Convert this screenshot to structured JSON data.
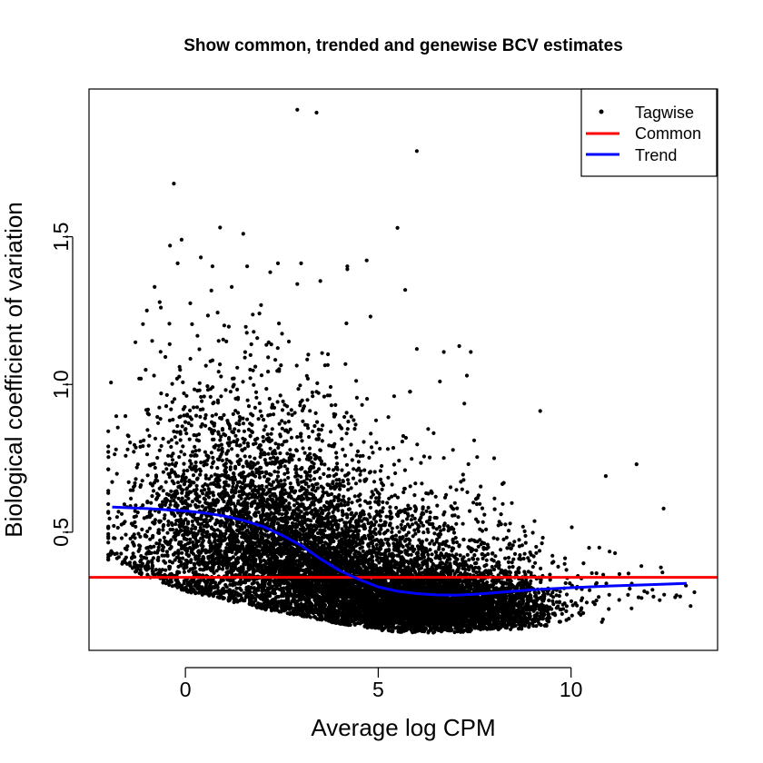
{
  "chart_data": {
    "type": "scatter",
    "title": "Show common, trended and genewise BCV estimates",
    "xlabel": "Average log CPM",
    "ylabel": "Biological coefficient of variation",
    "xlim": [
      -2.5,
      13.8
    ],
    "ylim": [
      0.1,
      2.0
    ],
    "x_ticks": [
      0,
      5,
      10
    ],
    "y_ticks": [
      0.5,
      1.0,
      1.5
    ],
    "x_tick_labels": [
      "0",
      "5",
      "10"
    ],
    "y_tick_labels": [
      "0.5",
      "1.0",
      "1.5"
    ],
    "grid": false,
    "legend_position": "top-right",
    "series": [
      {
        "name": "Tagwise",
        "kind": "points",
        "color": "#000000",
        "sample_points": [
          [
            2.9,
            1.93
          ],
          [
            3.4,
            1.92
          ],
          [
            6.0,
            1.79
          ],
          [
            -0.3,
            1.68
          ],
          [
            5.5,
            1.53
          ],
          [
            1.5,
            1.51
          ],
          [
            -0.4,
            1.47
          ],
          [
            -0.1,
            1.49
          ],
          [
            -0.2,
            1.41
          ],
          [
            0.4,
            1.43
          ],
          [
            4.7,
            1.42
          ],
          [
            4.2,
            1.4
          ],
          [
            2.4,
            1.41
          ],
          [
            3.0,
            1.41
          ],
          [
            1.6,
            1.4
          ],
          [
            4.2,
            1.39
          ],
          [
            2.2,
            1.38
          ],
          [
            3.5,
            1.35
          ],
          [
            0.7,
            1.4
          ],
          [
            2.9,
            1.34
          ],
          [
            -0.8,
            1.33
          ],
          [
            1.2,
            1.33
          ],
          [
            5.7,
            1.32
          ],
          [
            -1.0,
            1.25
          ],
          [
            4.8,
            1.23
          ],
          [
            6.0,
            1.12
          ],
          [
            6.7,
            1.11
          ],
          [
            7.4,
            1.11
          ],
          [
            7.1,
            1.13
          ],
          [
            -1.2,
            1.02
          ],
          [
            7.3,
            1.03
          ],
          [
            6.6,
            1.01
          ],
          [
            9.2,
            0.91
          ],
          [
            10.9,
            0.69
          ],
          [
            11.7,
            0.73
          ],
          [
            12.4,
            0.58
          ],
          [
            13.1,
            0.25
          ],
          [
            12.7,
            0.28
          ],
          [
            12.3,
            0.27
          ],
          [
            11.9,
            0.3
          ],
          [
            -1.9,
            0.67
          ],
          [
            -1.8,
            0.78
          ],
          [
            -1.5,
            0.78
          ],
          [
            -1.6,
            0.53
          ]
        ],
        "density": [
          {
            "cx": 0.0,
            "cy": 0.46,
            "sx": 1.0,
            "sy": 0.16,
            "n": 800
          },
          {
            "cx": 0.3,
            "cy": 0.7,
            "sx": 0.9,
            "sy": 0.18,
            "n": 260
          },
          {
            "cx": 0.3,
            "cy": 1.0,
            "sx": 0.9,
            "sy": 0.16,
            "n": 60
          },
          {
            "cx": 1.8,
            "cy": 0.45,
            "sx": 0.9,
            "sy": 0.14,
            "n": 1400
          },
          {
            "cx": 1.8,
            "cy": 0.7,
            "sx": 0.9,
            "sy": 0.16,
            "n": 340
          },
          {
            "cx": 2.0,
            "cy": 0.95,
            "sx": 0.9,
            "sy": 0.14,
            "n": 70
          },
          {
            "cx": 3.5,
            "cy": 0.35,
            "sx": 0.8,
            "sy": 0.11,
            "n": 2000
          },
          {
            "cx": 3.5,
            "cy": 0.58,
            "sx": 0.9,
            "sy": 0.14,
            "n": 420
          },
          {
            "cx": 3.5,
            "cy": 0.85,
            "sx": 0.9,
            "sy": 0.13,
            "n": 60
          },
          {
            "cx": 5.2,
            "cy": 0.27,
            "sx": 0.8,
            "sy": 0.07,
            "n": 2200
          },
          {
            "cx": 5.2,
            "cy": 0.45,
            "sx": 0.9,
            "sy": 0.11,
            "n": 420
          },
          {
            "cx": 5.2,
            "cy": 0.7,
            "sx": 0.9,
            "sy": 0.12,
            "n": 55
          },
          {
            "cx": 6.8,
            "cy": 0.25,
            "sx": 0.8,
            "sy": 0.06,
            "n": 1800
          },
          {
            "cx": 6.8,
            "cy": 0.4,
            "sx": 0.9,
            "sy": 0.09,
            "n": 320
          },
          {
            "cx": 6.9,
            "cy": 0.62,
            "sx": 0.8,
            "sy": 0.1,
            "n": 30
          },
          {
            "cx": 8.3,
            "cy": 0.24,
            "sx": 0.6,
            "sy": 0.05,
            "n": 650
          },
          {
            "cx": 8.3,
            "cy": 0.36,
            "sx": 0.7,
            "sy": 0.08,
            "n": 150
          },
          {
            "cx": 9.8,
            "cy": 0.27,
            "sx": 0.6,
            "sy": 0.05,
            "n": 60
          },
          {
            "cx": 9.8,
            "cy": 0.4,
            "sx": 0.7,
            "sy": 0.08,
            "n": 20
          },
          {
            "cx": 11.5,
            "cy": 0.3,
            "sx": 0.9,
            "sy": 0.05,
            "n": 25
          }
        ],
        "floor_curve": [
          [
            -2.0,
            0.4
          ],
          [
            0.0,
            0.3
          ],
          [
            2.0,
            0.24
          ],
          [
            4.0,
            0.19
          ],
          [
            5.5,
            0.16
          ],
          [
            7.0,
            0.16
          ],
          [
            8.5,
            0.17
          ],
          [
            10.0,
            0.19
          ],
          [
            13.5,
            0.21
          ]
        ]
      },
      {
        "name": "Common",
        "kind": "hline",
        "color": "#ff0000",
        "y": 0.347
      },
      {
        "name": "Trend",
        "kind": "line",
        "color": "#0000ff",
        "x": [
          -1.9,
          -1.0,
          0.0,
          0.5,
          1.0,
          1.5,
          2.0,
          2.5,
          3.0,
          3.5,
          4.0,
          4.5,
          5.0,
          5.5,
          6.0,
          6.5,
          7.0,
          7.5,
          8.0,
          9.0,
          10.0,
          11.0,
          12.0,
          13.0
        ],
        "y": [
          0.585,
          0.58,
          0.572,
          0.565,
          0.555,
          0.54,
          0.52,
          0.49,
          0.455,
          0.41,
          0.37,
          0.34,
          0.315,
          0.3,
          0.292,
          0.288,
          0.287,
          0.29,
          0.295,
          0.305,
          0.312,
          0.318,
          0.322,
          0.327
        ]
      }
    ],
    "legend": [
      {
        "label": "Tagwise",
        "symbol": "point",
        "color": "#000000"
      },
      {
        "label": "Common",
        "symbol": "line",
        "color": "#ff0000"
      },
      {
        "label": "Trend",
        "symbol": "line",
        "color": "#0000ff"
      }
    ]
  }
}
